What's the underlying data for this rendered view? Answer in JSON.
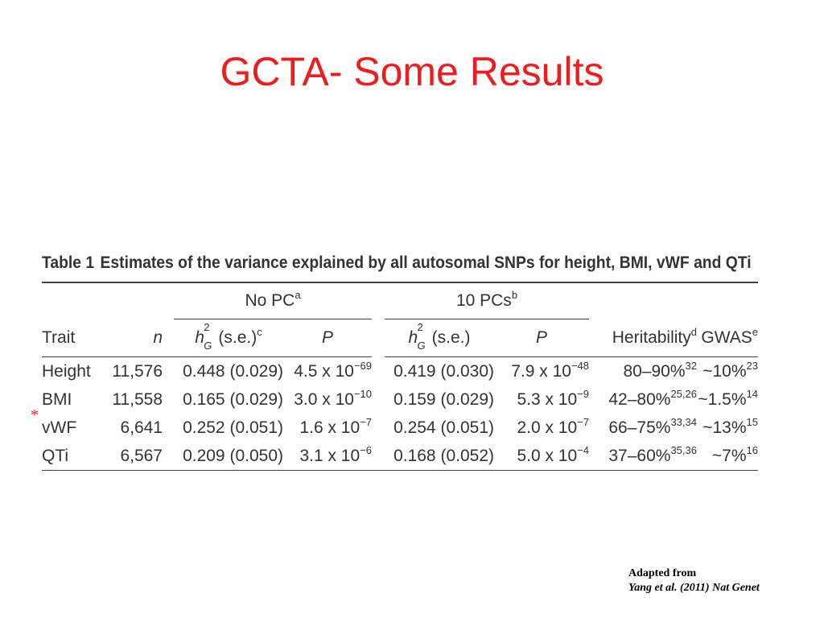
{
  "slide_title": "GCTA- Some Results",
  "table": {
    "label": "Table 1",
    "caption": "Estimates of the variance explained by all autosomal SNPs for height, BMI, vWF and QTi",
    "groups": {
      "no_pc": {
        "label": "No PC",
        "mark": "a"
      },
      "ten_pcs": {
        "label": "10 PCs",
        "mark": "b"
      }
    },
    "headers": {
      "trait": "Trait",
      "n": "n",
      "h_symbol": "h",
      "h_sup": "2",
      "h_sub": "G",
      "h_se": "(s.e.)",
      "h_se_mark": "c",
      "p": "P",
      "heritability": "Heritability",
      "heritability_mark": "d",
      "gwas": "GWAS",
      "gwas_mark": "e"
    },
    "rows": [
      {
        "trait": "Height",
        "n": "11,576",
        "h1": "0.448 (0.029)",
        "p1": "4.5 x 10",
        "p1_exp": "−69",
        "h2": "0.419 (0.030)",
        "p2": "7.9 x 10",
        "p2_exp": "−48",
        "herit": "80–90%",
        "herit_ref": "32",
        "gwas": "~10%",
        "gwas_ref": "23"
      },
      {
        "trait": "BMI",
        "n": "11,558",
        "h1": "0.165 (0.029)",
        "p1": "3.0 x 10",
        "p1_exp": "−10",
        "h2": "0.159 (0.029)",
        "p2": "5.3 x 10",
        "p2_exp": "−9",
        "herit": "42–80%",
        "herit_ref": "25,26",
        "gwas": "~1.5%",
        "gwas_ref": "14"
      },
      {
        "trait": "vWF",
        "n": "6,641",
        "h1": "0.252 (0.051)",
        "p1": "1.6 x 10",
        "p1_exp": "−7",
        "h2": "0.254 (0.051)",
        "p2": "2.0 x 10",
        "p2_exp": "−7",
        "herit": "66–75%",
        "herit_ref": "33,34",
        "gwas": "~13%",
        "gwas_ref": "15"
      },
      {
        "trait": "QTi",
        "n": "6,567",
        "h1": "0.209 (0.050)",
        "p1": "3.1 x 10",
        "p1_exp": "−6",
        "h2": "0.168 (0.052)",
        "p2": "5.0 x 10",
        "p2_exp": "−4",
        "herit": "37–60%",
        "herit_ref": "35,36",
        "gwas": "~7%",
        "gwas_ref": "16"
      }
    ]
  },
  "marker": "*",
  "citation": {
    "line1": "Adapted from",
    "line2": "Yang et al. (2011) Nat Genet"
  },
  "colors": {
    "title": "#ee1c1c",
    "table_text": "#333333"
  }
}
